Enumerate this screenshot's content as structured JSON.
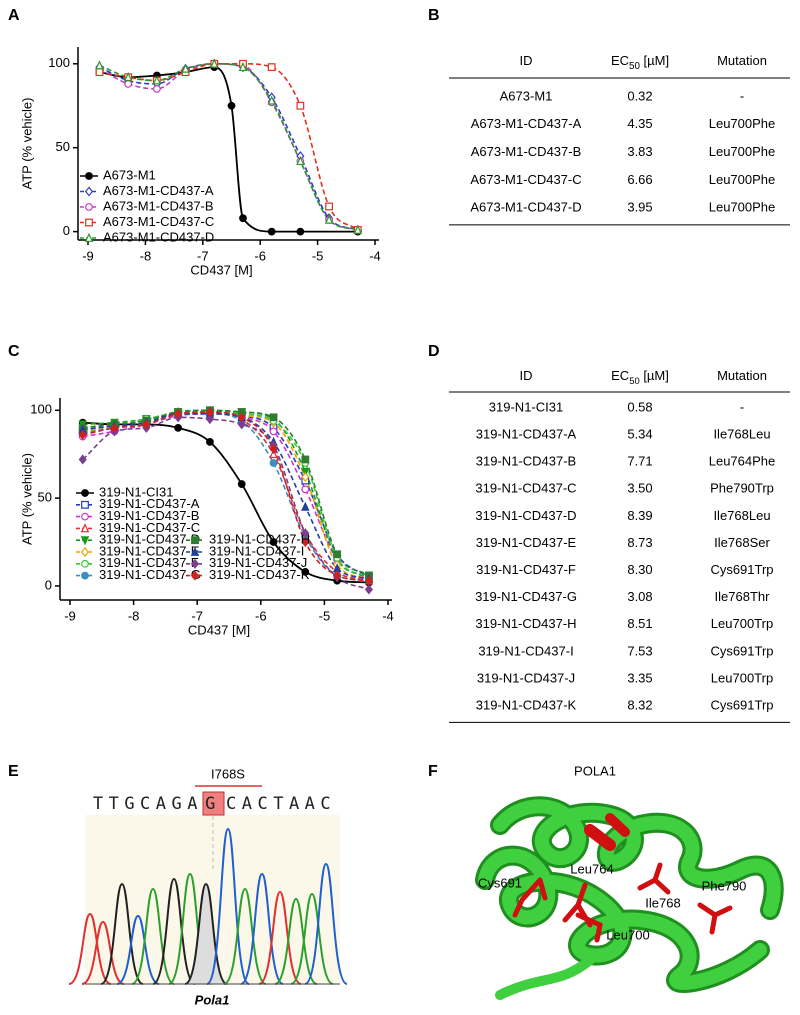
{
  "panel_labels": [
    "A",
    "B",
    "C",
    "D",
    "E",
    "F"
  ],
  "chart_data": [
    {
      "type": "line",
      "y_label": "ATP (% vehicle)",
      "x_label": "CD437 [M]",
      "xlim": [
        -9,
        -4
      ],
      "xticks": [
        -9,
        -8,
        -7,
        -6,
        -5,
        -4
      ],
      "ylim": [
        -5,
        110
      ],
      "yticks": [
        0,
        50,
        100
      ],
      "legend": "lower left",
      "series": [
        {
          "name": "A673-M1",
          "color": "#000000",
          "marker": "circle",
          "filled": true,
          "dashed": false,
          "x": [
            -8.8,
            -8.3,
            -7.8,
            -7.3,
            -6.8,
            -6.5,
            -6.3,
            -5.8,
            -5.3,
            -4.3
          ],
          "values": [
            95,
            92,
            93,
            95,
            98,
            75,
            8,
            0,
            0,
            0
          ]
        },
        {
          "name": "A673-M1-CD437-A",
          "color": "#2b3fbf",
          "marker": "diamond",
          "filled": false,
          "dashed": true,
          "x": [
            -8.8,
            -8.3,
            -7.8,
            -7.3,
            -6.8,
            -6.3,
            -5.8,
            -5.3,
            -4.8,
            -4.3
          ],
          "values": [
            98,
            90,
            88,
            97,
            100,
            98,
            80,
            45,
            8,
            1
          ]
        },
        {
          "name": "A673-M1-CD437-B",
          "color": "#c040c0",
          "marker": "circle",
          "filled": false,
          "dashed": true,
          "x": [
            -8.8,
            -8.3,
            -7.8,
            -7.3,
            -6.8,
            -6.3,
            -5.8,
            -5.3,
            -4.8,
            -4.3
          ],
          "values": [
            97,
            88,
            85,
            96,
            100,
            99,
            77,
            42,
            7,
            1
          ]
        },
        {
          "name": "A673-M1-CD437-C",
          "color": "#e03020",
          "marker": "square",
          "filled": false,
          "dashed": true,
          "x": [
            -8.8,
            -8.3,
            -7.8,
            -7.3,
            -6.8,
            -6.3,
            -5.8,
            -5.3,
            -4.8,
            -4.3
          ],
          "values": [
            95,
            92,
            90,
            95,
            100,
            100,
            98,
            75,
            15,
            1
          ]
        },
        {
          "name": "A673-M1-CD437-D",
          "color": "#2a9a2a",
          "marker": "triangle-up",
          "filled": false,
          "dashed": true,
          "x": [
            -8.8,
            -8.3,
            -7.8,
            -7.3,
            -6.8,
            -6.3,
            -5.8,
            -5.3,
            -4.8,
            -4.3
          ],
          "values": [
            99,
            92,
            90,
            97,
            100,
            98,
            78,
            42,
            7,
            1
          ]
        }
      ]
    },
    {
      "type": "line",
      "y_label": "ATP (% vehicle)",
      "x_label": "CD437 [M]",
      "xlim": [
        -9,
        -4
      ],
      "xticks": [
        -9,
        -8,
        -7,
        -6,
        -5,
        -4
      ],
      "ylim": [
        -8,
        107
      ],
      "yticks": [
        0,
        50,
        100
      ],
      "legend": "lower left",
      "series": [
        {
          "name": "319-N1-CI31",
          "color": "#000000",
          "marker": "circle",
          "filled": true,
          "dashed": false,
          "x": [
            -8.8,
            -8.3,
            -7.8,
            -7.3,
            -6.8,
            -6.3,
            -5.8,
            -5.3,
            -4.8,
            -4.3
          ],
          "values": [
            93,
            92,
            92,
            90,
            82,
            58,
            25,
            8,
            3,
            2
          ]
        },
        {
          "name": "319-N1-CD437-A",
          "color": "#1f3fbf",
          "marker": "square",
          "filled": false,
          "dashed": true,
          "x": [
            -8.8,
            -8.3,
            -7.8,
            -7.3,
            -6.8,
            -6.3,
            -5.8,
            -5.3,
            -4.8,
            -4.3
          ],
          "values": [
            88,
            90,
            95,
            98,
            99,
            97,
            90,
            60,
            18,
            5
          ]
        },
        {
          "name": "319-N1-CD437-B",
          "color": "#cc33cc",
          "marker": "circle",
          "filled": false,
          "dashed": true,
          "x": [
            -8.8,
            -8.3,
            -7.8,
            -7.3,
            -6.8,
            -6.3,
            -5.8,
            -5.3,
            -4.8,
            -4.3
          ],
          "values": [
            85,
            88,
            92,
            97,
            98,
            96,
            88,
            55,
            15,
            4
          ]
        },
        {
          "name": "319-N1-CD437-C",
          "color": "#e03030",
          "marker": "triangle-up",
          "filled": false,
          "dashed": true,
          "x": [
            -8.8,
            -8.3,
            -7.8,
            -7.3,
            -6.8,
            -6.3,
            -5.8,
            -5.3,
            -4.8,
            -4.3
          ],
          "values": [
            90,
            92,
            94,
            99,
            99,
            95,
            75,
            30,
            8,
            3
          ]
        },
        {
          "name": "319-N1-CD437-D",
          "color": "#1a9a1a",
          "marker": "triangle-down",
          "filled": true,
          "dashed": true,
          "x": [
            -8.8,
            -8.3,
            -7.8,
            -7.3,
            -6.8,
            -6.3,
            -5.8,
            -5.3,
            -4.8,
            -4.3
          ],
          "values": [
            92,
            93,
            95,
            99,
            100,
            99,
            95,
            65,
            15,
            5
          ]
        },
        {
          "name": "319-N1-CD437-E",
          "color": "#f0a000",
          "marker": "diamond",
          "filled": false,
          "dashed": true,
          "x": [
            -8.8,
            -8.3,
            -7.8,
            -7.3,
            -6.8,
            -6.3,
            -5.8,
            -5.3,
            -4.8,
            -4.3
          ],
          "values": [
            88,
            90,
            93,
            98,
            99,
            97,
            93,
            62,
            12,
            4
          ]
        },
        {
          "name": "319-N1-CD437-F",
          "color": "#33cc33",
          "marker": "circle",
          "filled": false,
          "dashed": true,
          "x": [
            -8.8,
            -8.3,
            -7.8,
            -7.3,
            -6.8,
            -6.3,
            -5.8,
            -5.3,
            -4.8,
            -4.3
          ],
          "values": [
            90,
            92,
            95,
            99,
            100,
            98,
            94,
            70,
            16,
            5
          ]
        },
        {
          "name": "319-N1-CD437-G",
          "color": "#3a8fc0",
          "marker": "circle",
          "filled": true,
          "dashed": true,
          "x": [
            -8.8,
            -8.3,
            -7.8,
            -7.3,
            -6.8,
            -6.3,
            -5.8,
            -5.3,
            -4.8,
            -4.3
          ],
          "values": [
            87,
            90,
            92,
            98,
            98,
            94,
            70,
            28,
            6,
            3
          ]
        },
        {
          "name": "319-N1-CD437-H",
          "color": "#2e7d32",
          "marker": "square",
          "filled": true,
          "dashed": true,
          "x": [
            -8.8,
            -8.3,
            -7.8,
            -7.3,
            -6.8,
            -6.3,
            -5.8,
            -5.3,
            -4.8,
            -4.3
          ],
          "values": [
            90,
            92,
            94,
            99,
            100,
            99,
            96,
            72,
            18,
            6
          ]
        },
        {
          "name": "319-N1-CD437-I",
          "color": "#2040a0",
          "marker": "triangle-up",
          "filled": true,
          "dashed": true,
          "x": [
            -8.8,
            -8.3,
            -7.8,
            -7.3,
            -6.8,
            -6.3,
            -5.8,
            -5.3,
            -4.8,
            -4.3
          ],
          "values": [
            89,
            91,
            93,
            98,
            98,
            96,
            82,
            45,
            10,
            4
          ]
        },
        {
          "name": "319-N1-CD437-J",
          "color": "#7a3f8f",
          "marker": "diamond",
          "filled": true,
          "dashed": true,
          "x": [
            -8.8,
            -8.3,
            -7.8,
            -7.3,
            -6.8,
            -6.3,
            -5.8,
            -5.3,
            -4.8,
            -4.3
          ],
          "values": [
            72,
            88,
            90,
            96,
            95,
            92,
            80,
            30,
            5,
            -2
          ]
        },
        {
          "name": "319-N1-CD437-K",
          "color": "#d02020",
          "marker": "diamond",
          "filled": true,
          "dashed": true,
          "x": [
            -8.8,
            -8.3,
            -7.8,
            -7.3,
            -6.8,
            -6.3,
            -5.8,
            -5.3,
            -4.8,
            -4.3
          ],
          "values": [
            86,
            90,
            92,
            98,
            99,
            96,
            78,
            25,
            6,
            3
          ]
        }
      ]
    }
  ],
  "tables": [
    {
      "header": [
        {
          "text": "ID"
        },
        {
          "text": "EC",
          "sub": "50",
          "after": " [µM]"
        },
        {
          "text": "Mutation"
        }
      ],
      "rows": [
        [
          "A673-M1",
          "0.32",
          "-"
        ],
        [
          "A673-M1-CD437-A",
          "4.35",
          "Leu700Phe"
        ],
        [
          "A673-M1-CD437-B",
          "3.83",
          "Leu700Phe"
        ],
        [
          "A673-M1-CD437-C",
          "6.66",
          "Leu700Phe"
        ],
        [
          "A673-M1-CD437-D",
          "3.95",
          "Leu700Phe"
        ]
      ]
    },
    {
      "header": [
        {
          "text": "ID"
        },
        {
          "text": "EC",
          "sub": "50",
          "after": " [µM]"
        },
        {
          "text": "Mutation"
        }
      ],
      "rows": [
        [
          "319-N1-CI31",
          "0.58",
          "-"
        ],
        [
          "319-N1-CD437-A",
          "5.34",
          "Ile768Leu"
        ],
        [
          "319-N1-CD437-B",
          "7.71",
          "Leu764Phe"
        ],
        [
          "319-N1-CD437-C",
          "3.50",
          "Phe790Trp"
        ],
        [
          "319-N1-CD437-D",
          "8.39",
          "Ile768Leu"
        ],
        [
          "319-N1-CD437-E",
          "8.73",
          "Ile768Ser"
        ],
        [
          "319-N1-CD437-F",
          "8.30",
          "Cys691Trp"
        ],
        [
          "319-N1-CD437-G",
          "3.08",
          "Ile768Thr"
        ],
        [
          "319-N1-CD437-H",
          "8.51",
          "Leu700Trp"
        ],
        [
          "319-N1-CD437-I",
          "7.53",
          "Cys691Trp"
        ],
        [
          "319-N1-CD437-J",
          "3.35",
          "Leu700Trp"
        ],
        [
          "319-N1-CD437-K",
          "8.32",
          "Cys691Trp"
        ]
      ]
    }
  ],
  "sequence_panel": {
    "mutation": "I768S",
    "sequence_before": "TTGCAGA",
    "highlight": "G",
    "sequence_after": "CACTAAC",
    "gene": "Pola1"
  },
  "structure_panel": {
    "title": "POLA1",
    "residues": [
      "Cys691",
      "Leu764",
      "Ile768",
      "Phe790",
      "Leu700"
    ]
  }
}
